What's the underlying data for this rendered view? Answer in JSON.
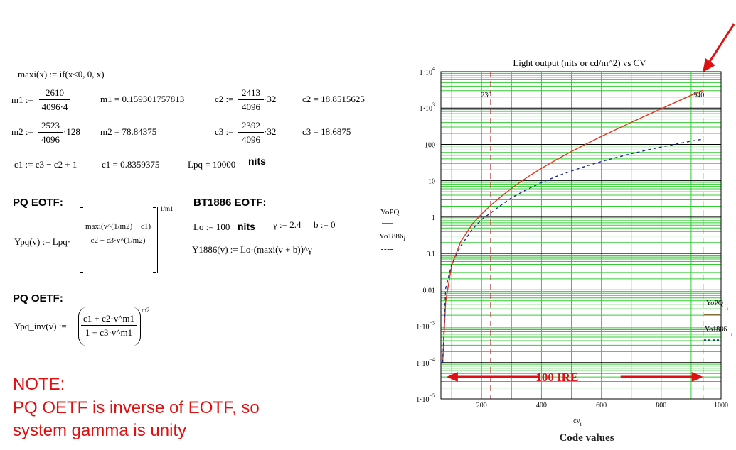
{
  "equations": {
    "maxi": "maxi(x) := if(x<0, 0, x)",
    "m1_lhs": "m1 :=",
    "m1_num": "2610",
    "m1_den": "4096·4",
    "m1_res": "m1 = 0.159301757813",
    "c2_lhs": "c2 :=",
    "c2_num": "2413",
    "c2_den": "4096",
    "c2_mul": "·32",
    "c2_res": "c2 = 18.8515625",
    "m2_lhs": "m2 :=",
    "m2_num": "2523",
    "m2_den": "4096",
    "m2_mul": "·128",
    "m2_res": "m2 = 78.84375",
    "c3_lhs": "c3 :=",
    "c3_num": "2392",
    "c3_den": "4096",
    "c3_mul": "·32",
    "c3_res": "c3 = 18.6875",
    "c1_def": "c1 := c3 − c2 + 1",
    "c1_res": "c1 = 0.8359375",
    "lpq": "Lpq = 10000",
    "lpq_unit": "nits",
    "pq_eotf_title": "PQ EOTF:",
    "ypq_lhs": "Ypq(v) := Lpq·",
    "ypq_num": "maxi(v^(1/m2) − c1)",
    "ypq_den": "c2 − c3·v^(1/m2)",
    "ypq_exp": "1/m1",
    "bt1886_title": "BT1886 EOTF:",
    "lo": "Lo := 100",
    "lo_unit": "nits",
    "gamma": "γ := 2.4",
    "b": "b := 0",
    "y1886": "Y1886(v) := Lo·(maxi(v + b))^γ",
    "pq_oetf_title": "PQ OETF:",
    "ypqinv_lhs": "Ypq_inv(v) :=",
    "ypqinv_num": "c1 + c2·v^m1",
    "ypqinv_den": "1 + c3·v^m1",
    "ypqinv_exp": "m2"
  },
  "note": {
    "line1": "NOTE:",
    "line2": "PQ OETF is inverse of EOTF, so",
    "line3": "system gamma is unity"
  },
  "legend": {
    "s1": "YoPQ",
    "s1_sub": "i",
    "s2": "Yo1886",
    "s2_sub": "i"
  },
  "colors": {
    "pq": "#e03a1e",
    "bt1886": "#1a2b8c",
    "grid": "#33cc33",
    "marker": "#b03030",
    "note": "#e01010",
    "arrow": "#dd1111"
  },
  "chart_data": {
    "type": "line",
    "title": "Light output (nits or cd/m^2) vs CV",
    "xlabel": "cv",
    "xlabel_sub": "i",
    "xlabel_caption": "Code values",
    "xlim": [
      64,
      1000
    ],
    "ylim": [
      1e-05,
      10000
    ],
    "yscale": "log",
    "xticks": [
      200,
      400,
      600,
      800,
      1000
    ],
    "yticks": [
      {
        "v": 10000,
        "label": "1·10",
        "exp": "4"
      },
      {
        "v": 1000,
        "label": "1·10",
        "exp": "3"
      },
      {
        "v": 100,
        "label": "100",
        "exp": ""
      },
      {
        "v": 10,
        "label": "10",
        "exp": ""
      },
      {
        "v": 1,
        "label": "1",
        "exp": ""
      },
      {
        "v": 0.1,
        "label": "0.1",
        "exp": ""
      },
      {
        "v": 0.01,
        "label": "0.01",
        "exp": ""
      },
      {
        "v": 0.001,
        "label": "1·10",
        "exp": "−3"
      },
      {
        "v": 0.0001,
        "label": "1·10",
        "exp": "−4"
      },
      {
        "v": 1e-05,
        "label": "1·10",
        "exp": "−5"
      }
    ],
    "markers": [
      {
        "x": 230,
        "label": "230"
      },
      {
        "x": 940,
        "label": "940"
      }
    ],
    "annotation": "100 IRE",
    "series": [
      {
        "name": "YoPQ",
        "style": "solid",
        "x": [
          70,
          80,
          100,
          130,
          170,
          200,
          230,
          260,
          300,
          350,
          400,
          450,
          500,
          550,
          600,
          650,
          700,
          750,
          800,
          850,
          900,
          940
        ],
        "y": [
          0.0001,
          0.0048,
          0.047,
          0.21,
          0.66,
          1.21,
          2.1,
          3.4,
          6.2,
          12.1,
          22.0,
          38.0,
          63.5,
          103,
          165,
          259,
          403,
          622,
          958,
          1470,
          2250,
          3100
        ]
      },
      {
        "name": "Yo1886",
        "style": "dashed",
        "x": [
          70,
          80,
          100,
          130,
          170,
          200,
          230,
          260,
          300,
          350,
          400,
          450,
          500,
          550,
          600,
          650,
          700,
          750,
          800,
          850,
          900,
          940
        ],
        "y": [
          0.0001,
          0.011,
          0.05,
          0.16,
          0.47,
          0.86,
          1.3,
          2.0,
          3.4,
          5.7,
          8.9,
          13.2,
          18.6,
          25.4,
          33.7,
          43.6,
          55.3,
          68.9,
          84.6,
          102.4,
          122.4,
          140
        ]
      }
    ]
  }
}
